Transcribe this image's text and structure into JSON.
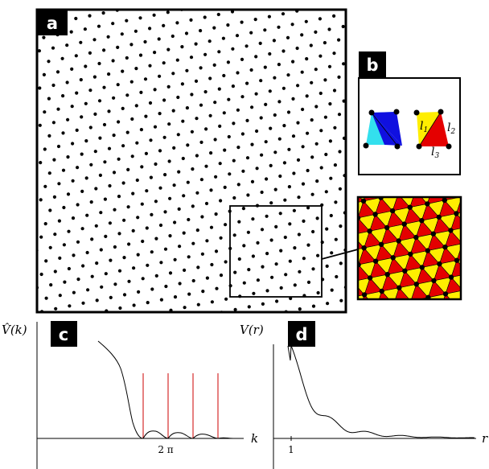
{
  "panels": {
    "a": {
      "label": "a"
    },
    "b": {
      "label": "b",
      "edge_labels": [
        "l1",
        "l2",
        "l3"
      ]
    },
    "c": {
      "label": "c"
    },
    "d": {
      "label": "d"
    }
  },
  "plot_c": {
    "ylabel": "V̂(k)",
    "xlabel": "k",
    "x_ticks": [
      "2 π"
    ],
    "curve_color": "#000000",
    "bragg_line_color": "#cc0000"
  },
  "plot_d": {
    "ylabel": "V(r)",
    "xlabel": "r",
    "x_ticks": [
      "1"
    ],
    "curve_color": "#000000"
  },
  "colors": {
    "cyan": "#33e0ee",
    "blue": "#1010e0",
    "yellow": "#ffee00",
    "red": "#e40000"
  }
}
